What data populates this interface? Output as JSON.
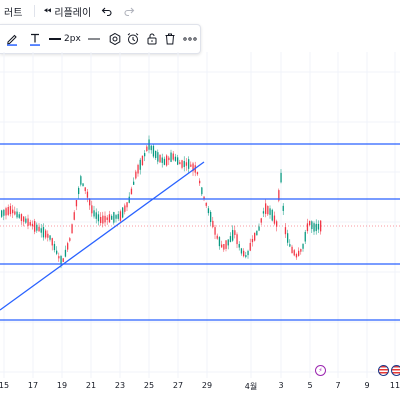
{
  "top_bar": {
    "chart_fragment_label": "러트",
    "replay_label": "리플레이"
  },
  "drawing_toolbar": {
    "line_width_label": "2px",
    "line_color": "#131722",
    "text_color": "#2962ff"
  },
  "chart": {
    "line_color": "#2962ff",
    "price_ref_color": "#f23645",
    "candle_up_color": "#089981",
    "candle_down_color": "#f23645"
  },
  "x_axis": {
    "ticks": [
      "15",
      "17",
      "19",
      "21",
      "23",
      "25",
      "27",
      "29",
      "4월",
      "3",
      "5",
      "7",
      "9",
      "11"
    ]
  }
}
